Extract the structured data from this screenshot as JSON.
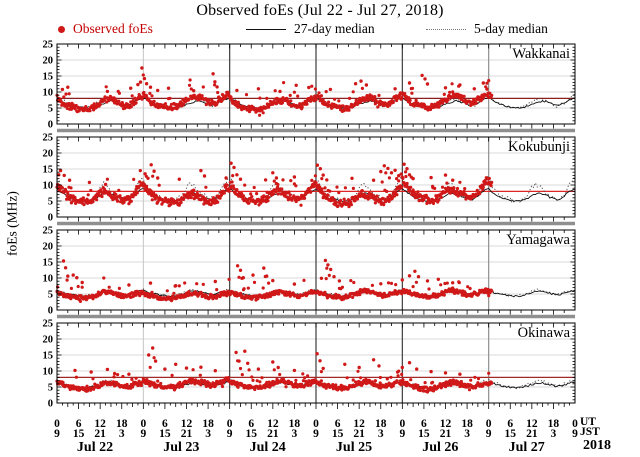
{
  "page": {
    "title": "Observed foEs (Jul 22 - Jul 27, 2018)"
  },
  "legend": {
    "observed_label": "Observed foEs",
    "median27_label": "27-day median",
    "median5_label": "5-day median"
  },
  "axis_labels": {
    "y": "foEs (MHz)",
    "ut": "UT",
    "jst": "JST",
    "year": "2018"
  },
  "chart_data": {
    "type": "scatter",
    "title": "Observed foEs (Jul 22 - Jul 27, 2018)",
    "seed": 20180722,
    "x_axis": {
      "dates": [
        "Jul 22",
        "Jul 23",
        "Jul 24",
        "Jul 25",
        "Jul 26",
        "Jul 27"
      ],
      "hours_total": 144,
      "observed_end_hour": 121,
      "ut_tick_labels": [
        "0",
        "6",
        "12",
        "18"
      ],
      "jst_tick_labels": [
        "9",
        "15",
        "21",
        "3"
      ],
      "closing_ut_label": "0",
      "closing_jst_label": "9"
    },
    "y_axis": {
      "label": "foEs (MHz)",
      "min": 0,
      "max": 25,
      "tick_labels": [
        0,
        5,
        10,
        15,
        20,
        25
      ]
    },
    "colors": {
      "observed": "#d01818",
      "median27": "#101010",
      "median5": "#4a4a4a",
      "grid": "#cbcbcb",
      "frame": "#000000",
      "day_line_light": "#c4c4c4",
      "day_line_dark": "#3d3d3d",
      "day_line_mid": "#8f8f8f",
      "separator": "#8f8f8f"
    },
    "stations": [
      {
        "name": "Wakkanai",
        "threshold_mhz": 8,
        "threshold_color": "#8b1f1f",
        "observed_daily": [
          8.3,
          7.2,
          6.3,
          5.8,
          5.4,
          5.1,
          4.9,
          4.7,
          4.6,
          4.8,
          5.3,
          6.0,
          6.8,
          7.4,
          7.7,
          7.9,
          7.4,
          6.7,
          6.0,
          5.6,
          5.9,
          6.6,
          7.5,
          8.1
        ],
        "day_amp": [
          1.0,
          1.12,
          0.95,
          1.05,
          1.15
        ],
        "noise": 1.25,
        "median5_jitter": 0.5,
        "spikes": [
          [
            1.5,
            10.8
          ],
          [
            3,
            11.5
          ],
          [
            14,
            10.2
          ],
          [
            20.5,
            11.2
          ],
          [
            22.5,
            12.3
          ],
          [
            23.2,
            13.1
          ],
          [
            23.6,
            17.5
          ],
          [
            24.3,
            14.2
          ],
          [
            24.9,
            12.6
          ],
          [
            26,
            11.5
          ],
          [
            28,
            10.5
          ],
          [
            31,
            11.2
          ],
          [
            38,
            10.4
          ],
          [
            43.4,
            15.7
          ],
          [
            43.9,
            13.2
          ],
          [
            44.5,
            11.6
          ],
          [
            50,
            10.5
          ],
          [
            56,
            11.0
          ],
          [
            62,
            10.2
          ],
          [
            66.5,
            12.1
          ],
          [
            70,
            11.4
          ],
          [
            76,
            10.8
          ],
          [
            83,
            12.6
          ],
          [
            84.5,
            13.4
          ],
          [
            86,
            12.2
          ],
          [
            94,
            11.0
          ],
          [
            98,
            12.8
          ],
          [
            101.5,
            15.2
          ],
          [
            102.3,
            14.1
          ],
          [
            103,
            12.5
          ],
          [
            108,
            11.3
          ],
          [
            112,
            12.2
          ],
          [
            116,
            11.0
          ],
          [
            118.5,
            12.8
          ],
          [
            119.5,
            10.9
          ]
        ],
        "median27_daily": [
          8.2,
          7.4,
          6.8,
          6.2,
          5.8,
          5.5,
          5.3,
          5.1,
          5.0,
          5.0,
          5.3,
          5.7,
          6.1,
          6.5,
          6.9,
          7.2,
          7.0,
          6.6,
          6.2,
          5.8,
          6.0,
          6.6,
          7.2,
          7.8
        ],
        "median5_daily": [
          9.0,
          7.8,
          7.0,
          6.3,
          5.8,
          5.5,
          5.2,
          5.0,
          5.0,
          5.2,
          5.7,
          6.5,
          7.3,
          7.7,
          7.5,
          7.9,
          7.2,
          6.5,
          6.0,
          5.6,
          5.9,
          6.6,
          7.6,
          8.5
        ]
      },
      {
        "name": "Kokubunji",
        "threshold_mhz": 8,
        "threshold_color": "#e02525",
        "observed_daily": [
          9.5,
          8.2,
          7.0,
          6.1,
          5.5,
          5.0,
          4.7,
          4.5,
          4.3,
          4.5,
          5.0,
          5.9,
          6.9,
          7.4,
          7.0,
          6.5,
          6.0,
          5.5,
          5.0,
          4.8,
          5.1,
          6.1,
          7.6,
          8.8
        ],
        "day_amp": [
          1.08,
          1.0,
          1.12,
          1.0,
          1.22
        ],
        "noise": 1.55,
        "median5_jitter": 0.8,
        "spikes": [
          [
            0.5,
            13.2
          ],
          [
            1,
            14.5
          ],
          [
            2,
            13.0
          ],
          [
            3.5,
            11.5
          ],
          [
            9,
            10.8
          ],
          [
            13.5,
            10.2
          ],
          [
            24.5,
            13.5
          ],
          [
            25.3,
            12.1
          ],
          [
            26.2,
            16.3
          ],
          [
            27,
            14.3
          ],
          [
            28,
            12.2
          ],
          [
            34,
            11.8
          ],
          [
            40,
            14.5
          ],
          [
            41,
            12.8
          ],
          [
            47,
            12.2
          ],
          [
            48.4,
            16.8
          ],
          [
            49.2,
            15.5
          ],
          [
            50,
            13.2
          ],
          [
            51,
            11.8
          ],
          [
            58,
            11.6
          ],
          [
            60,
            13.8
          ],
          [
            61,
            12.2
          ],
          [
            66,
            12.5
          ],
          [
            72.4,
            16.2
          ],
          [
            73.2,
            15.1
          ],
          [
            74,
            13.1
          ],
          [
            75,
            11.6
          ],
          [
            82,
            12.1
          ],
          [
            88,
            11.5
          ],
          [
            90,
            14.2
          ],
          [
            91,
            16.0
          ],
          [
            92,
            15.2
          ],
          [
            93,
            13.8
          ],
          [
            94,
            14.6
          ],
          [
            95,
            12.9
          ],
          [
            96.5,
            16.5
          ],
          [
            97.3,
            15.1
          ],
          [
            98,
            13.2
          ],
          [
            99,
            12.0
          ],
          [
            104,
            12.3
          ],
          [
            108,
            13.1
          ],
          [
            110,
            11.5
          ]
        ],
        "median27_daily": [
          8.8,
          7.9,
          7.1,
          6.4,
          5.9,
          5.5,
          5.2,
          5.0,
          4.9,
          5.0,
          5.4,
          6.0,
          6.7,
          7.3,
          7.5,
          7.1,
          6.7,
          6.2,
          5.8,
          5.5,
          5.8,
          6.6,
          7.6,
          8.4
        ],
        "median5_daily": [
          12.3,
          9.8,
          8.1,
          7.0,
          6.2,
          5.7,
          5.3,
          5.1,
          5.0,
          5.3,
          6.1,
          7.4,
          9.2,
          10.6,
          9.6,
          8.4,
          7.4,
          6.5,
          5.9,
          5.6,
          6.1,
          7.2,
          8.8,
          10.8
        ]
      },
      {
        "name": "Yamagawa",
        "threshold_mhz": null,
        "threshold_color": null,
        "observed_daily": [
          5.4,
          5.1,
          4.8,
          4.5,
          4.2,
          4.0,
          3.9,
          3.8,
          3.8,
          4.0,
          4.3,
          4.7,
          5.2,
          5.5,
          5.6,
          5.4,
          5.1,
          4.8,
          4.5,
          4.3,
          4.5,
          4.8,
          5.2,
          5.4
        ],
        "day_amp": [
          1.0,
          0.95,
          1.02,
          1.06,
          1.1
        ],
        "noise": 0.85,
        "median5_jitter": 0.35,
        "spikes": [
          [
            1.8,
            15.3
          ],
          [
            2.4,
            13.2
          ],
          [
            3,
            10.6
          ],
          [
            4.5,
            10.9
          ],
          [
            5.5,
            10.1
          ],
          [
            7,
            8.6
          ],
          [
            20,
            7.8
          ],
          [
            26,
            8.4
          ],
          [
            33,
            7.6
          ],
          [
            44,
            8.9
          ],
          [
            50.2,
            13.8
          ],
          [
            51,
            12.4
          ],
          [
            51.8,
            10.1
          ],
          [
            54.5,
            10.9
          ],
          [
            57.5,
            13.1
          ],
          [
            58.3,
            10.6
          ],
          [
            60,
            9.2
          ],
          [
            66,
            8.1
          ],
          [
            73.5,
            9.9
          ],
          [
            74.6,
            15.5
          ],
          [
            75.3,
            14.1
          ],
          [
            76.1,
            12.7
          ],
          [
            77,
            10.4
          ],
          [
            78.5,
            9.1
          ],
          [
            90,
            8.2
          ],
          [
            96,
            9.4
          ],
          [
            98,
            10.7
          ],
          [
            99.5,
            12.1
          ],
          [
            100.5,
            10.4
          ],
          [
            103,
            9.1
          ],
          [
            106,
            9.6
          ],
          [
            110,
            8.5
          ]
        ],
        "median27_daily": [
          6.0,
          5.6,
          5.2,
          5.0,
          4.8,
          4.6,
          4.5,
          4.4,
          4.3,
          4.4,
          4.7,
          5.0,
          5.4,
          5.8,
          6.0,
          5.8,
          5.5,
          5.2,
          5.0,
          4.8,
          4.9,
          5.2,
          5.6,
          5.9
        ],
        "median5_daily": [
          6.3,
          5.8,
          5.4,
          5.1,
          4.9,
          4.7,
          4.5,
          4.4,
          4.4,
          4.6,
          4.9,
          5.3,
          5.8,
          6.2,
          6.3,
          6.1,
          5.7,
          5.3,
          5.1,
          4.9,
          5.0,
          5.4,
          5.8,
          6.1
        ]
      },
      {
        "name": "Okinawa",
        "threshold_mhz": 8,
        "threshold_color": "#a32929",
        "observed_daily": [
          6.4,
          6.0,
          5.5,
          5.2,
          4.9,
          4.7,
          4.5,
          4.4,
          4.4,
          4.6,
          5.0,
          5.4,
          5.9,
          6.2,
          6.4,
          6.2,
          5.9,
          5.5,
          5.2,
          5.0,
          5.2,
          5.6,
          6.0,
          6.3
        ],
        "day_amp": [
          1.0,
          1.1,
          1.06,
          1.05,
          1.0
        ],
        "noise": 1.05,
        "median5_jitter": 0.45,
        "spikes": [
          [
            5,
            10.2
          ],
          [
            9.5,
            9.7
          ],
          [
            14,
            10.5
          ],
          [
            16,
            9.2
          ],
          [
            20,
            9.0
          ],
          [
            25.5,
            15.0
          ],
          [
            26.6,
            17.2
          ],
          [
            27.4,
            13.1
          ],
          [
            30,
            10.6
          ],
          [
            33,
            12.1
          ],
          [
            36,
            10.9
          ],
          [
            40,
            11.2
          ],
          [
            44,
            10.1
          ],
          [
            49.8,
            15.8
          ],
          [
            50.6,
            13.1
          ],
          [
            52.2,
            16.2
          ],
          [
            53,
            12.4
          ],
          [
            56,
            10.6
          ],
          [
            60,
            12.8
          ],
          [
            61.5,
            11.1
          ],
          [
            66,
            10.2
          ],
          [
            72.3,
            15.4
          ],
          [
            73.1,
            13.2
          ],
          [
            74,
            10.8
          ],
          [
            80,
            12.1
          ],
          [
            84,
            11.1
          ],
          [
            88,
            13.5
          ],
          [
            89.5,
            11.6
          ],
          [
            96,
            11.1
          ],
          [
            98,
            12.6
          ],
          [
            100,
            10.6
          ],
          [
            104,
            9.8
          ],
          [
            108,
            9.4
          ],
          [
            112,
            9.0
          ]
        ],
        "median27_daily": [
          6.5,
          6.2,
          5.8,
          5.5,
          5.2,
          5.0,
          4.9,
          4.8,
          4.8,
          4.9,
          5.1,
          5.4,
          5.8,
          6.1,
          6.3,
          6.2,
          6.0,
          5.7,
          5.4,
          5.2,
          5.3,
          5.6,
          6.0,
          6.4
        ],
        "median5_daily": [
          7.1,
          6.6,
          6.1,
          5.7,
          5.4,
          5.1,
          5.0,
          4.9,
          4.9,
          5.1,
          5.4,
          5.8,
          6.3,
          6.7,
          6.9,
          6.7,
          6.3,
          5.9,
          5.6,
          5.3,
          5.5,
          6.0,
          6.5,
          6.9
        ]
      }
    ]
  }
}
